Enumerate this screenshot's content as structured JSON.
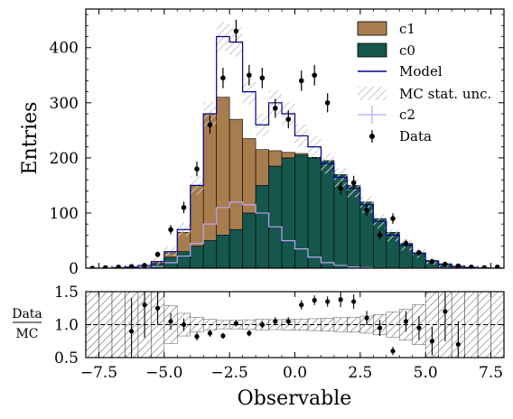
{
  "chart_data": [
    {
      "type": "histogram",
      "panel": "main",
      "ylabel": "Entries",
      "xlim": [
        -8,
        8
      ],
      "ylim": [
        0,
        470
      ],
      "y_ticks": [
        "0",
        "100",
        "200",
        "300",
        "400"
      ],
      "y_tick_values": [
        0,
        100,
        200,
        300,
        400
      ],
      "bin_edges": [
        -8,
        -7.5,
        -7,
        -6.5,
        -6,
        -5.5,
        -5,
        -4.5,
        -4,
        -3.5,
        -3,
        -2.5,
        -2,
        -1.5,
        -1,
        -0.5,
        0,
        0.5,
        1,
        1.5,
        2,
        2.5,
        3,
        3.5,
        4,
        4.5,
        5,
        5.5,
        6,
        6.5,
        7,
        7.5,
        8
      ],
      "series": [
        {
          "name": "c1",
          "color": "#a87d4e",
          "stacked": true,
          "values": [
            0,
            0,
            0,
            0,
            0,
            2,
            8,
            35,
            110,
            230,
            250,
            200,
            135,
            65,
            28,
            10,
            3,
            1,
            0,
            0,
            0,
            0,
            0,
            0,
            0,
            0,
            0,
            0,
            0,
            0,
            0,
            0
          ]
        },
        {
          "name": "c0",
          "color": "#15564d",
          "stacked": true,
          "values": [
            0,
            0,
            0,
            1,
            3,
            8,
            20,
            30,
            40,
            50,
            60,
            70,
            100,
            150,
            185,
            200,
            205,
            200,
            195,
            170,
            150,
            120,
            90,
            65,
            45,
            28,
            14,
            8,
            4,
            2,
            1,
            0
          ]
        },
        {
          "name": "Model",
          "color": "#00008b",
          "type": "step",
          "values": [
            0,
            0,
            1,
            2,
            5,
            12,
            30,
            70,
            150,
            280,
            420,
            410,
            320,
            260,
            300,
            280,
            240,
            220,
            190,
            165,
            145,
            115,
            85,
            60,
            42,
            27,
            13,
            7,
            3,
            1,
            0,
            0
          ]
        },
        {
          "name": "c2",
          "color": "#b8a6f2",
          "type": "step",
          "values": [
            0,
            0,
            0,
            0,
            1,
            3,
            10,
            22,
            45,
            80,
            110,
            120,
            115,
            100,
            75,
            50,
            35,
            20,
            10,
            5,
            2,
            1,
            0,
            0,
            0,
            0,
            0,
            0,
            0,
            0,
            0,
            0
          ]
        }
      ],
      "mc_stat_unc": {
        "name": "MC stat. unc.",
        "style": "hatched",
        "color": "#cccccc"
      },
      "data": {
        "name": "Data",
        "color": "#000000",
        "x": [
          -7.75,
          -7.25,
          -6.75,
          -6.25,
          -5.75,
          -5.25,
          -4.75,
          -4.25,
          -3.75,
          -3.25,
          -2.75,
          -2.25,
          -1.75,
          -1.25,
          -0.75,
          -0.25,
          0.25,
          0.75,
          1.25,
          1.75,
          2.25,
          2.75,
          3.25,
          3.75,
          4.25,
          4.75,
          5.25,
          5.75,
          6.25,
          6.75,
          7.25,
          7.75
        ],
        "y": [
          0,
          1,
          2,
          3,
          5,
          25,
          70,
          110,
          180,
          260,
          345,
          430,
          350,
          345,
          290,
          270,
          340,
          350,
          300,
          145,
          155,
          105,
          60,
          90,
          45,
          28,
          12,
          7,
          4,
          2,
          1,
          2
        ]
      },
      "legend": [
        "c1",
        "c0",
        "Model",
        "MC stat. unc.",
        "c2",
        "Data"
      ],
      "legend_position": "upper right"
    },
    {
      "type": "ratio",
      "panel": "ratio",
      "xlabel": "Observable",
      "ylabel_numerator": "Data",
      "ylabel_denominator": "MC",
      "xlim": [
        -8,
        8
      ],
      "ylim": [
        0.5,
        1.5
      ],
      "reference_line": 1.0,
      "x_ticks": [
        "−7.5",
        "−5.0",
        "−2.5",
        "0.0",
        "2.5",
        "5.0",
        "7.5"
      ],
      "x_tick_values": [
        -7.5,
        -5,
        -2.5,
        0,
        2.5,
        5,
        7.5
      ],
      "y_ticks": [
        "0.5",
        "1.0",
        "1.5"
      ],
      "y_tick_values": [
        0.5,
        1.0,
        1.5
      ],
      "points": {
        "x": [
          -6.25,
          -5.75,
          -5.25,
          -4.75,
          -4.25,
          -3.75,
          -3.25,
          -2.75,
          -2.25,
          -1.75,
          -1.25,
          -0.75,
          -0.25,
          0.25,
          0.75,
          1.25,
          1.75,
          2.25,
          2.75,
          3.25,
          3.75,
          4.25,
          4.75,
          5.25,
          5.75,
          6.25
        ],
        "y": [
          0.9,
          1.3,
          1.25,
          1.05,
          1.0,
          0.82,
          0.87,
          0.83,
          1.02,
          0.87,
          1.0,
          1.05,
          1.05,
          1.3,
          1.37,
          1.35,
          1.38,
          1.35,
          1.1,
          0.95,
          0.6,
          1.05,
          0.95,
          0.75,
          1.2,
          0.7
        ]
      }
    }
  ]
}
